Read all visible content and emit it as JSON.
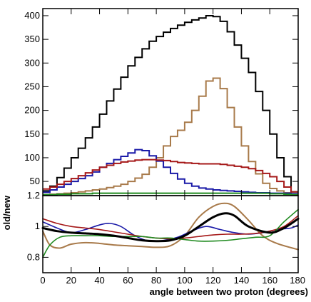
{
  "chart_data": [
    {
      "type": "line",
      "panel": "top",
      "style": "step-histogram",
      "xlim": [
        0,
        180
      ],
      "ylim": [
        20,
        415
      ],
      "xlabel": "",
      "ylabel": "",
      "bin_width": 5,
      "x_bin_edges": [
        0,
        5,
        10,
        15,
        20,
        25,
        30,
        35,
        40,
        45,
        50,
        55,
        60,
        65,
        70,
        75,
        80,
        85,
        90,
        95,
        100,
        105,
        110,
        115,
        120,
        125,
        130,
        135,
        140,
        145,
        150,
        155,
        160,
        165,
        170,
        175,
        180
      ],
      "yticks": [
        50,
        100,
        150,
        200,
        250,
        300,
        350,
        400
      ],
      "ytick_labels": [
        "50",
        "100",
        "150",
        "200",
        "250",
        "300",
        "350",
        "400"
      ],
      "series": [
        {
          "color": "#000000",
          "values": [
            30,
            40,
            58,
            78,
            100,
            120,
            142,
            165,
            192,
            220,
            245,
            270,
            294,
            312,
            330,
            346,
            356,
            365,
            373,
            380,
            386,
            391,
            395,
            400,
            398,
            388,
            366,
            338,
            310,
            280,
            240,
            200,
            150,
            100,
            60,
            28
          ]
        },
        {
          "color": "#A87A4A",
          "values": [
            22,
            23,
            24,
            25,
            26,
            28,
            30,
            32,
            34,
            37,
            40,
            44,
            50,
            57,
            65,
            80,
            100,
            125,
            145,
            158,
            175,
            200,
            230,
            262,
            268,
            246,
            206,
            165,
            125,
            92,
            66,
            46,
            35,
            30,
            26,
            23
          ]
        },
        {
          "color": "#1A1AA8",
          "values": [
            27,
            32,
            38,
            44,
            50,
            56,
            62,
            70,
            80,
            88,
            96,
            103,
            110,
            117,
            115,
            104,
            93,
            80,
            67,
            55,
            46,
            40,
            36,
            34,
            32,
            31,
            30,
            29,
            28,
            27,
            26,
            26,
            25,
            25,
            25,
            24
          ]
        },
        {
          "color": "#A51818",
          "values": [
            34,
            38,
            44,
            50,
            56,
            62,
            68,
            74,
            80,
            84,
            88,
            91,
            93,
            95,
            96,
            96,
            95,
            94,
            92,
            90,
            89,
            88,
            87,
            87,
            87,
            86,
            84,
            82,
            80,
            77,
            73,
            67,
            60,
            50,
            38,
            28
          ]
        },
        {
          "color": "#1F8A1F",
          "values": [
            22,
            22,
            23,
            23,
            24,
            24,
            24,
            25,
            25,
            25,
            25,
            25,
            25,
            25,
            25,
            25,
            25,
            25,
            25,
            25,
            25,
            25,
            25,
            25,
            25,
            25,
            25,
            25,
            25,
            25,
            25,
            25,
            24,
            24,
            23,
            22
          ]
        }
      ]
    },
    {
      "type": "line",
      "panel": "bottom",
      "style": "smooth",
      "xlim": [
        0,
        180
      ],
      "ylim": [
        0.7,
        1.2
      ],
      "xlabel": "angle between two proton (degrees)",
      "ylabel": "old/new",
      "xticks": [
        0,
        20,
        40,
        60,
        80,
        100,
        120,
        140,
        160,
        180
      ],
      "xtick_labels": [
        "0",
        "20",
        "40",
        "60",
        "80",
        "100",
        "120",
        "140",
        "160",
        "180"
      ],
      "yticks": [
        0.8,
        1.0,
        1.2
      ],
      "ytick_labels": [
        "0.8",
        "1",
        "1.2"
      ],
      "series": [
        {
          "color": "#000000",
          "width": 3,
          "x": [
            0,
            10,
            20,
            30,
            40,
            50,
            60,
            70,
            80,
            90,
            100,
            110,
            120,
            128,
            135,
            145,
            160,
            170,
            180
          ],
          "y": [
            0.99,
            0.97,
            0.96,
            0.955,
            0.95,
            0.94,
            0.925,
            0.91,
            0.905,
            0.91,
            0.94,
            1.0,
            1.06,
            1.085,
            1.07,
            1.0,
            0.96,
            0.99,
            1.05
          ]
        },
        {
          "color": "#A87A4A",
          "width": 2,
          "x": [
            0,
            5,
            12,
            20,
            30,
            40,
            50,
            60,
            70,
            80,
            90,
            100,
            110,
            120,
            128,
            135,
            145,
            155,
            165,
            180
          ],
          "y": [
            0.97,
            0.88,
            0.86,
            0.885,
            0.895,
            0.89,
            0.88,
            0.875,
            0.87,
            0.865,
            0.875,
            0.94,
            1.06,
            1.13,
            1.15,
            1.13,
            1.04,
            0.94,
            0.89,
            0.85
          ]
        },
        {
          "color": "#1A1AA8",
          "width": 1.6,
          "x": [
            0,
            10,
            20,
            30,
            40,
            47,
            55,
            65,
            75,
            85,
            95,
            105,
            115,
            125,
            135,
            145,
            155,
            165,
            175,
            180
          ],
          "y": [
            1.03,
            0.99,
            0.96,
            0.98,
            1.01,
            1.02,
            1.0,
            0.94,
            0.905,
            0.91,
            0.93,
            0.97,
            1.0,
            0.98,
            0.96,
            0.95,
            0.96,
            0.98,
            0.99,
            1.01
          ]
        },
        {
          "color": "#A51818",
          "width": 1.6,
          "x": [
            0,
            10,
            20,
            30,
            40,
            50,
            60,
            70,
            80,
            90,
            100,
            110,
            120,
            130,
            140,
            150,
            160,
            170,
            180
          ],
          "y": [
            1.05,
            1.02,
            1.0,
            0.99,
            0.98,
            0.965,
            0.95,
            0.935,
            0.925,
            0.92,
            0.925,
            0.935,
            0.945,
            0.95,
            0.95,
            0.955,
            0.97,
            1.0,
            1.07
          ]
        },
        {
          "color": "#1F8A1F",
          "width": 1.6,
          "x": [
            0,
            5,
            12,
            20,
            30,
            40,
            50,
            60,
            70,
            80,
            90,
            100,
            110,
            120,
            130,
            140,
            150,
            160,
            170,
            180
          ],
          "y": [
            0.8,
            0.88,
            0.93,
            0.94,
            0.94,
            0.94,
            0.935,
            0.935,
            0.935,
            0.925,
            0.925,
            0.915,
            0.905,
            0.905,
            0.91,
            0.92,
            0.93,
            0.94,
            1.03,
            1.11
          ]
        }
      ]
    }
  ]
}
